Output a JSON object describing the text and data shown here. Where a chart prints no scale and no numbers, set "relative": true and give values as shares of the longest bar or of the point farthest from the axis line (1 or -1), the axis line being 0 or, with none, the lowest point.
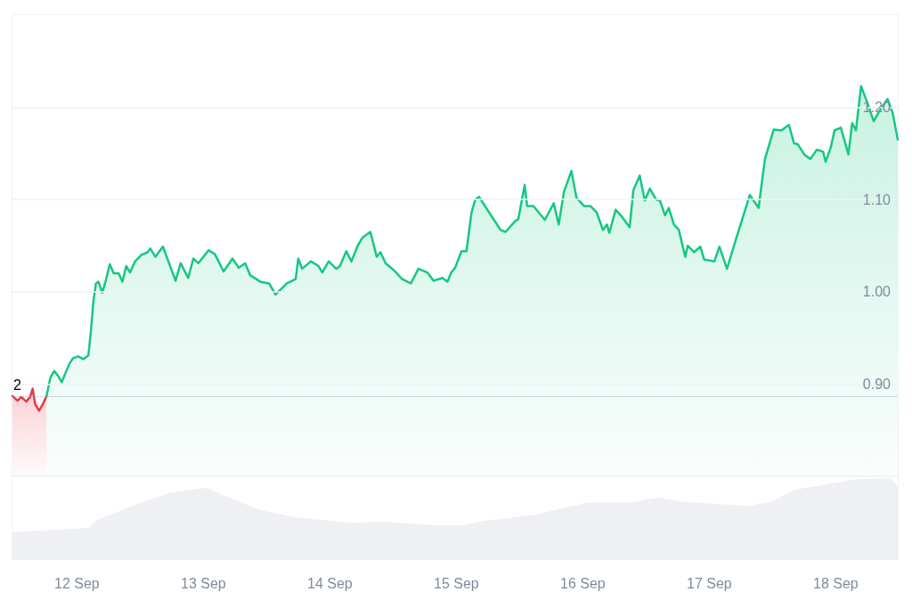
{
  "chart_data": [
    {
      "type": "area",
      "xlim": [
        "--09-11T11:46",
        "--09-18T11:46"
      ],
      "ylim": [
        0.8,
        1.3
      ],
      "yticks": [
        {
          "value": 0.9,
          "label": "0.90"
        },
        {
          "value": 1.0,
          "label": "1.00"
        },
        {
          "value": 1.1,
          "label": "1.10"
        },
        {
          "value": 1.2,
          "label": "1.20"
        }
      ],
      "tick_labels": "y",
      "grid": "y",
      "marker": "none",
      "line_style": "solid",
      "ref_lines": [
        {
          "axis": "y",
          "value": 0.887,
          "line_style": "dotted",
          "color": "#a6b0c3"
        }
      ],
      "annotations": [
        "2"
      ],
      "series": [
        {
          "color": "#ea3943",
          "x": [
            "--09-11T11:46",
            "--09-11T12:43",
            "--09-11T13:26",
            "--09-11T14:24",
            "--09-11T15:07",
            "--09-11T15:36",
            "--09-11T16:05",
            "--09-11T16:48",
            "--09-11T17:31",
            "--09-11T18:14"
          ],
          "values": [
            0.887,
            0.882,
            0.886,
            0.881,
            0.886,
            0.895,
            0.878,
            0.871,
            0.878,
            0.887
          ]
        },
        {
          "color": "#16c784",
          "x": [
            "--09-11T18:14",
            "--09-11T18:58",
            "--09-11T19:41",
            "--09-11T20:24",
            "--09-11T21:07",
            "--09-11T21:50",
            "--09-11T22:34",
            "--09-11T23:17",
            "--09-12T00:14",
            "--09-12T01:12",
            "--09-12T02:10",
            "--09-12T02:38",
            "--09-12T03:07",
            "--09-12T03:36",
            "--09-12T04:05",
            "--09-12T04:48",
            "--09-12T05:31",
            "--09-12T06:14",
            "--09-12T06:58",
            "--09-12T07:55",
            "--09-12T08:38",
            "--09-12T09:22",
            "--09-12T10:05",
            "--09-12T11:02",
            "--09-12T12:14",
            "--09-12T13:26",
            "--09-12T13:55",
            "--09-12T14:53",
            "--09-12T16:19",
            "--09-12T18:43",
            "--09-12T19:41",
            "--09-12T21:07",
            "--09-12T22:05",
            "--09-12T23:02",
            "--09-13T00:58",
            "--09-13T02:10",
            "--09-13T03:50",
            "--09-13T05:31",
            "--09-13T06:43",
            "--09-13T07:55",
            "--09-13T08:53",
            "--09-13T10:48",
            "--09-13T12:29",
            "--09-13T13:41",
            "--09-13T15:50",
            "--09-13T17:31",
            "--09-13T18:00",
            "--09-13T18:43",
            "--09-13T20:24",
            "--09-13T21:50",
            "--09-13T22:34",
            "--09-13T23:46",
            "--09-14T01:12",
            "--09-14T01:55",
            "--09-14T03:07",
            "--09-14T04:05",
            "--09-14T05:17",
            "--09-14T06:14",
            "--09-14T07:41",
            "--09-14T08:53",
            "--09-14T09:36",
            "--09-14T10:34",
            "--09-14T12:14",
            "--09-14T13:41",
            "--09-14T15:22",
            "--09-14T16:48",
            "--09-14T18:29",
            "--09-14T19:41",
            "--09-14T21:22",
            "--09-14T22:19",
            "--09-14T23:02",
            "--09-14T23:46",
            "--09-15T00:58",
            "--09-15T01:55",
            "--09-15T02:53",
            "--09-15T03:36",
            "--09-15T04:19",
            "--09-15T06:14",
            "--09-15T08:24",
            "--09-15T09:22",
            "--09-15T11:02",
            "--09-15T11:46",
            "--09-15T12:58",
            "--09-15T13:26",
            "--09-15T14:38",
            "--09-15T16:48",
            "--09-15T18:29",
            "--09-15T19:26",
            "--09-15T20:24",
            "--09-15T21:50",
            "--09-15T22:48",
            "--09-16T00:14",
            "--09-16T01:26",
            "--09-16T02:38",
            "--09-16T03:50",
            "--09-16T04:34",
            "--09-16T05:02",
            "--09-16T06:14",
            "--09-16T07:12",
            "--09-16T08:53",
            "--09-16T09:36",
            "--09-16T10:48",
            "--09-16T11:46",
            "--09-16T12:43",
            "--09-16T13:55",
            "--09-16T14:38",
            "--09-16T15:36",
            "--09-16T16:19",
            "--09-16T17:17",
            "--09-16T18:14",
            "--09-16T19:26",
            "--09-16T19:55",
            "--09-16T21:07",
            "--09-16T22:19",
            "--09-16T23:02",
            "--09-17T00:58",
            "--09-17T01:55",
            "--09-17T03:22",
            "--09-17T04:48",
            "--09-17T06:00",
            "--09-17T07:41",
            "--09-17T08:24",
            "--09-17T09:22",
            "--09-17T09:50",
            "--09-17T10:34",
            "--09-17T12:14",
            "--09-17T13:41",
            "--09-17T15:07",
            "--09-17T16:05",
            "--09-17T16:48",
            "--09-17T18:00",
            "--09-17T19:12",
            "--09-17T20:24",
            "--09-17T21:36",
            "--09-17T22:05",
            "--09-17T23:02",
            "--09-17T23:46",
            "--09-18T00:58",
            "--09-18T02:24",
            "--09-18T03:07",
            "--09-18T03:50",
            "--09-18T04:48",
            "--09-18T06:00",
            "--09-18T07:12",
            "--09-18T08:10",
            "--09-18T09:50",
            "--09-18T10:48",
            "--09-18T11:46"
          ],
          "values": [
            0.887,
            0.907,
            0.914,
            0.909,
            0.902,
            0.912,
            0.922,
            0.928,
            0.93,
            0.927,
            0.931,
            0.956,
            0.989,
            1.009,
            1.011,
            0.999,
            1.013,
            1.03,
            1.02,
            1.02,
            1.011,
            1.028,
            1.021,
            1.033,
            1.04,
            1.043,
            1.047,
            1.038,
            1.049,
            1.012,
            1.031,
            1.015,
            1.036,
            1.031,
            1.045,
            1.041,
            1.022,
            1.036,
            1.026,
            1.031,
            1.018,
            1.011,
            1.009,
            0.997,
            1.009,
            1.014,
            1.036,
            1.025,
            1.033,
            1.028,
            1.021,
            1.033,
            1.025,
            1.028,
            1.044,
            1.033,
            1.05,
            1.059,
            1.065,
            1.038,
            1.043,
            1.031,
            1.023,
            1.014,
            1.009,
            1.025,
            1.021,
            1.012,
            1.015,
            1.011,
            1.021,
            1.026,
            1.044,
            1.044,
            1.086,
            1.1,
            1.103,
            1.086,
            1.067,
            1.065,
            1.076,
            1.079,
            1.116,
            1.093,
            1.093,
            1.078,
            1.096,
            1.073,
            1.108,
            1.131,
            1.102,
            1.093,
            1.093,
            1.086,
            1.067,
            1.073,
            1.064,
            1.089,
            1.083,
            1.07,
            1.11,
            1.126,
            1.099,
            1.112,
            1.1,
            1.099,
            1.083,
            1.091,
            1.073,
            1.067,
            1.038,
            1.05,
            1.043,
            1.049,
            1.035,
            1.033,
            1.049,
            1.025,
            1.052,
            1.074,
            1.105,
            1.099,
            1.091,
            1.112,
            1.144,
            1.176,
            1.175,
            1.181,
            1.161,
            1.16,
            1.149,
            1.144,
            1.154,
            1.152,
            1.141,
            1.156,
            1.175,
            1.178,
            1.149,
            1.183,
            1.175,
            1.223,
            1.205,
            1.185,
            1.195,
            1.209,
            1.194,
            1.165
          ]
        }
      ]
    },
    {
      "type": "area",
      "relative": true,
      "xlim": [
        "--09-11T11:46",
        "--09-18T11:46"
      ],
      "xticks": [
        {
          "value": "--09-12",
          "label": "12 Sep"
        },
        {
          "value": "--09-13",
          "label": "13 Sep"
        },
        {
          "value": "--09-14",
          "label": "14 Sep"
        },
        {
          "value": "--09-15",
          "label": "15 Sep"
        },
        {
          "value": "--09-16",
          "label": "16 Sep"
        },
        {
          "value": "--09-17",
          "label": "17 Sep"
        },
        {
          "value": "--09-18",
          "label": "18 Sep"
        }
      ],
      "tick_labels": "x",
      "grid": false,
      "marker": "none",
      "series": [
        {
          "color": "#eef0f3",
          "x": [
            "--09-11T11:46",
            "--09-12T02:10",
            "--09-12T03:50",
            "--09-12T10:34",
            "--09-12T17:31",
            "--09-13T00:43",
            "--09-13T04:05",
            "--09-13T10:48",
            "--09-13T17:31",
            "--09-14T04:48",
            "--09-14T09:22",
            "--09-14T20:38",
            "--09-15T01:12",
            "--09-15T05:46",
            "--09-15T14:38",
            "--09-16T00:58",
            "--09-16T08:53",
            "--09-16T14:24",
            "--09-16T18:58",
            "--09-17T07:12",
            "--09-17T11:46",
            "--09-17T16:19",
            "--09-18T03:36",
            "--09-18T10:19",
            "--09-18T11:46"
          ],
          "values": [
            0.34,
            0.39,
            0.49,
            0.66,
            0.82,
            0.88,
            0.78,
            0.61,
            0.52,
            0.45,
            0.47,
            0.42,
            0.42,
            0.48,
            0.55,
            0.7,
            0.7,
            0.76,
            0.71,
            0.66,
            0.71,
            0.86,
            0.98,
            1,
            0.9
          ]
        }
      ]
    }
  ]
}
